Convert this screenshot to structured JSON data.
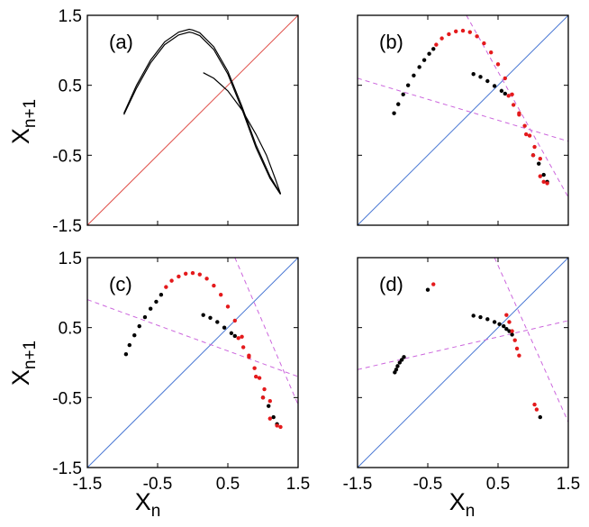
{
  "chart_data": {
    "type": "scatter",
    "title": "",
    "layout": "2x2 grid of return-map panels",
    "xlabel": {
      "base": "X",
      "sub": "n"
    },
    "ylabel": {
      "base": "X",
      "sub": "n+1"
    },
    "xlim": [
      -1.5,
      1.5
    ],
    "ylim": [
      -1.5,
      1.5
    ],
    "x_ticks": [
      "-1.5",
      "-0.5",
      "0.5",
      "1.5"
    ],
    "y_ticks": [
      "1.5",
      "0.5",
      "-0.5",
      "-1.5"
    ],
    "colors": {
      "trajectory": "#000000",
      "highlight": "#e41a1c",
      "diagonal_a": "#e0504a",
      "diagonal": "#4a78d4",
      "manifold": "#cc66dd"
    },
    "panels": [
      {
        "label": "(a)",
        "diagonal_color": "diagonal_a",
        "series": [
          {
            "name": "upper branch",
            "color": "trajectory",
            "style": "curve",
            "x": [
              -0.98,
              -0.8,
              -0.6,
              -0.4,
              -0.2,
              -0.05,
              0.0,
              0.1,
              0.3,
              0.5,
              0.7,
              0.9,
              1.1,
              1.25
            ],
            "y": [
              0.1,
              0.5,
              0.86,
              1.12,
              1.26,
              1.3,
              1.29,
              1.25,
              1.05,
              0.7,
              0.2,
              -0.35,
              -0.8,
              -1.05
            ]
          },
          {
            "name": "upper branch inner",
            "color": "trajectory",
            "style": "curve",
            "x": [
              -0.98,
              -0.8,
              -0.6,
              -0.4,
              -0.2,
              -0.05,
              0.0,
              0.1,
              0.3,
              0.5,
              0.7,
              0.9,
              1.1,
              1.25
            ],
            "y": [
              0.08,
              0.46,
              0.82,
              1.08,
              1.22,
              1.26,
              1.25,
              1.21,
              1.01,
              0.66,
              0.16,
              -0.39,
              -0.83,
              -1.06
            ]
          },
          {
            "name": "lower branch",
            "color": "trajectory",
            "style": "curve",
            "x": [
              0.15,
              0.3,
              0.5,
              0.7,
              0.9,
              1.05,
              1.18,
              1.25
            ],
            "y": [
              0.68,
              0.6,
              0.42,
              0.15,
              -0.2,
              -0.5,
              -0.85,
              -1.05
            ]
          }
        ],
        "manifolds": []
      },
      {
        "label": "(b)",
        "diagonal_color": "diagonal",
        "series": [
          {
            "name": "black points",
            "color": "trajectory",
            "style": "dots",
            "x": [
              -0.98,
              -0.92,
              -0.85,
              -0.78,
              -0.7,
              -0.62,
              -0.55,
              -0.48,
              -0.42,
              0.15,
              0.25,
              0.35,
              0.45,
              0.55,
              0.6,
              1.0,
              1.08,
              1.15,
              1.2
            ],
            "y": [
              0.1,
              0.23,
              0.37,
              0.5,
              0.64,
              0.76,
              0.86,
              0.95,
              1.02,
              0.66,
              0.62,
              0.56,
              0.49,
              0.42,
              0.38,
              -0.5,
              -0.62,
              -0.78,
              -0.88
            ]
          },
          {
            "name": "red points",
            "color": "highlight",
            "style": "dots",
            "x": [
              -0.38,
              -0.3,
              -0.2,
              -0.1,
              0.0,
              0.1,
              0.2,
              0.3,
              0.4,
              0.5,
              0.6,
              0.7,
              0.8,
              0.9,
              1.0,
              1.1,
              1.15,
              1.2,
              0.65,
              0.72,
              0.8,
              0.88,
              0.95,
              1.02,
              1.1
            ],
            "y": [
              1.08,
              1.17,
              1.23,
              1.27,
              1.28,
              1.26,
              1.2,
              1.1,
              0.97,
              0.8,
              0.6,
              0.37,
              0.1,
              -0.2,
              -0.5,
              -0.8,
              -0.88,
              -0.9,
              0.35,
              0.22,
              0.08,
              -0.08,
              -0.22,
              -0.38,
              -0.55
            ]
          }
        ],
        "manifolds": [
          {
            "x": [
              -1.5,
              1.5
            ],
            "y": [
              0.6,
              -0.3
            ]
          },
          {
            "x": [
              0.05,
              1.5
            ],
            "y": [
              1.5,
              -1.1
            ]
          }
        ]
      },
      {
        "label": "(c)",
        "diagonal_color": "diagonal",
        "series": [
          {
            "name": "black points",
            "color": "trajectory",
            "style": "dots",
            "x": [
              -0.95,
              -0.9,
              -0.83,
              -0.76,
              -0.68,
              -0.6,
              -0.52,
              -0.45,
              0.15,
              0.25,
              0.35,
              0.45,
              0.55,
              0.6,
              1.0,
              1.08,
              1.15,
              1.2
            ],
            "y": [
              0.12,
              0.25,
              0.39,
              0.52,
              0.65,
              0.77,
              0.87,
              0.97,
              0.68,
              0.64,
              0.58,
              0.5,
              0.42,
              0.38,
              -0.5,
              -0.62,
              -0.78,
              -0.88
            ]
          },
          {
            "name": "red points",
            "color": "highlight",
            "style": "dots",
            "x": [
              -0.38,
              -0.3,
              -0.2,
              -0.1,
              0.0,
              0.1,
              0.2,
              0.3,
              0.4,
              0.5,
              0.6,
              0.7,
              0.8,
              0.9,
              1.0,
              1.1,
              1.2,
              1.25,
              0.65,
              0.72,
              0.8,
              0.88,
              0.95,
              1.02,
              1.1
            ],
            "y": [
              1.08,
              1.17,
              1.23,
              1.27,
              1.28,
              1.26,
              1.2,
              1.1,
              0.97,
              0.8,
              0.6,
              0.37,
              0.1,
              -0.2,
              -0.5,
              -0.8,
              -0.9,
              -0.92,
              0.35,
              0.22,
              0.08,
              -0.08,
              -0.22,
              -0.38,
              -0.55
            ]
          }
        ],
        "manifolds": [
          {
            "x": [
              -1.5,
              1.5
            ],
            "y": [
              0.9,
              -0.2
            ]
          },
          {
            "x": [
              0.6,
              1.5
            ],
            "y": [
              1.5,
              -0.6
            ]
          }
        ]
      },
      {
        "label": "(d)",
        "diagonal_color": "diagonal",
        "series": [
          {
            "name": "black points",
            "color": "trajectory",
            "style": "dots",
            "x": [
              -0.97,
              -0.95,
              -0.93,
              -0.9,
              -0.87,
              -0.84,
              -0.5,
              0.15,
              0.25,
              0.35,
              0.45,
              0.52,
              0.58,
              0.62,
              0.66,
              0.7,
              1.1
            ],
            "y": [
              -0.14,
              -0.1,
              -0.05,
              0.0,
              0.04,
              0.08,
              1.04,
              0.67,
              0.65,
              0.62,
              0.58,
              0.55,
              0.52,
              0.48,
              0.45,
              0.4,
              -0.78
            ]
          },
          {
            "name": "red points",
            "color": "highlight",
            "style": "dots",
            "x": [
              -0.42,
              0.62,
              0.66,
              0.7,
              0.74,
              0.77,
              0.8,
              1.02,
              1.05
            ],
            "y": [
              1.12,
              0.68,
              0.58,
              0.45,
              0.32,
              0.2,
              0.1,
              -0.6,
              -0.67
            ]
          }
        ],
        "manifolds": [
          {
            "x": [
              -1.5,
              1.5
            ],
            "y": [
              -0.1,
              0.6
            ]
          },
          {
            "x": [
              0.45,
              1.5
            ],
            "y": [
              1.5,
              -0.85
            ]
          }
        ]
      }
    ]
  }
}
